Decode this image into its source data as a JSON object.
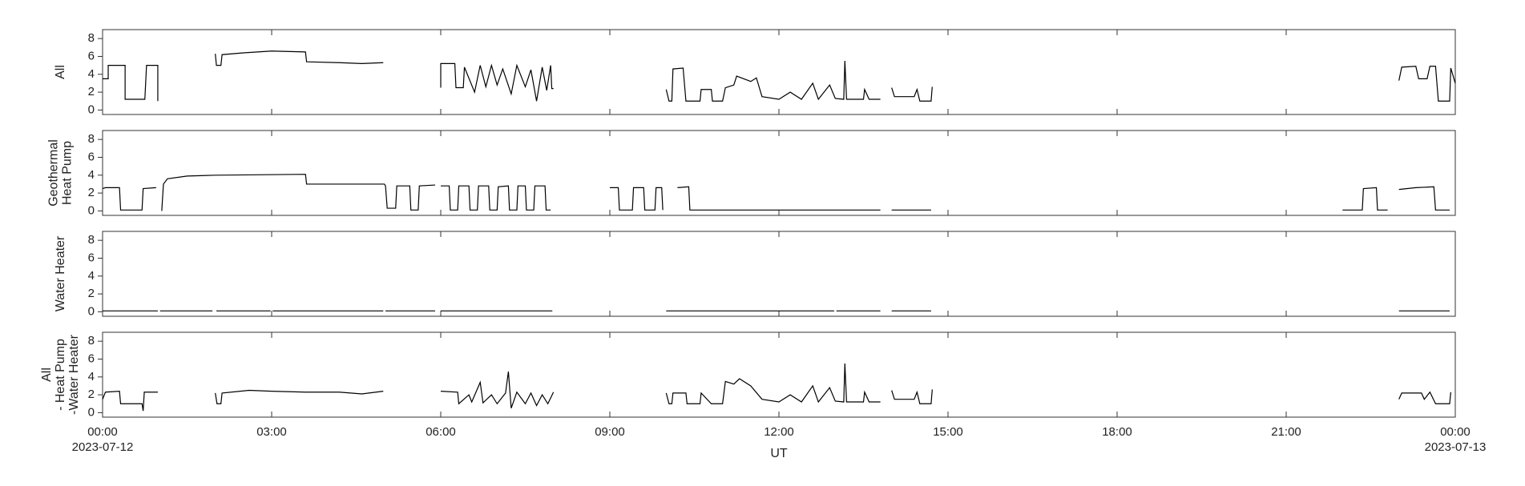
{
  "chart_data": [
    {
      "type": "line",
      "ylabel": [
        "All"
      ],
      "color": "#000000",
      "xlim": [
        0,
        24
      ],
      "xticks": [
        0,
        3,
        6,
        9,
        12,
        15,
        18,
        21,
        24
      ],
      "ylim": [
        -0.5,
        9
      ],
      "yticks": [
        0,
        2,
        4,
        6,
        8
      ],
      "x": [
        0,
        0.1,
        0.1,
        0.4,
        0.4,
        0.75,
        0.78,
        0.98,
        0.98,
        1.0,
        2.0,
        2.02,
        2.1,
        2.12,
        2.5,
        3.0,
        3.6,
        3.62,
        4.2,
        4.6,
        4.98,
        5.0,
        6.0,
        6.0,
        6.25,
        6.27,
        6.4,
        6.42,
        6.6,
        6.7,
        6.8,
        6.9,
        7.0,
        7.1,
        7.25,
        7.35,
        7.5,
        7.6,
        7.7,
        7.8,
        7.88,
        7.95,
        7.97,
        8.0,
        8.05,
        10.0,
        10.05,
        10.1,
        10.12,
        10.3,
        10.35,
        10.6,
        10.62,
        10.8,
        10.82,
        11.0,
        11.05,
        11.2,
        11.25,
        11.5,
        11.6,
        11.7,
        12.0,
        12.2,
        12.4,
        12.6,
        12.7,
        12.9,
        13.0,
        13.15,
        13.17,
        13.2,
        13.5,
        13.52,
        13.6,
        13.8,
        13.85,
        14.0,
        14.05,
        14.4,
        14.45,
        14.5,
        14.7,
        14.72,
        14.75,
        23.0,
        23.05,
        23.3,
        23.35,
        23.5,
        23.55,
        23.65,
        23.7,
        23.9,
        23.92,
        24.0
      ],
      "values": [
        3.5,
        3.5,
        5,
        5,
        1.2,
        1.2,
        5,
        5,
        1.0,
        null,
        6.3,
        5.0,
        5.0,
        6.2,
        6.4,
        6.6,
        6.5,
        5.4,
        5.3,
        5.2,
        5.3,
        null,
        2.5,
        5.2,
        5.2,
        2.5,
        2.5,
        4.8,
        2.0,
        5.0,
        2.6,
        5.0,
        2.8,
        4.6,
        1.8,
        5.0,
        2.6,
        4.5,
        1.0,
        4.8,
        2.2,
        5.0,
        2.4,
        2.4,
        null,
        2.3,
        1.0,
        1.0,
        4.6,
        4.7,
        1.0,
        1.0,
        2.3,
        2.3,
        1.0,
        1.0,
        2.5,
        2.8,
        3.8,
        3.2,
        3.6,
        1.5,
        1.2,
        2.0,
        1.2,
        3.0,
        1.2,
        2.8,
        1.3,
        1.2,
        5.5,
        1.2,
        1.2,
        2.3,
        1.2,
        1.2,
        null,
        2.5,
        1.5,
        1.5,
        2.3,
        1.0,
        1.0,
        2.6,
        null,
        3.3,
        4.8,
        4.9,
        3.5,
        3.5,
        4.9,
        4.9,
        1.0,
        1.0,
        4.7,
        3.0
      ]
    },
    {
      "type": "line",
      "ylabel": [
        "Geothermal",
        "Heat Pump"
      ],
      "color": "#000000",
      "xlim": [
        0,
        24
      ],
      "xticks": [
        0,
        3,
        6,
        9,
        12,
        15,
        18,
        21,
        24
      ],
      "ylim": [
        -0.5,
        9
      ],
      "yticks": [
        0,
        2,
        4,
        6,
        8
      ],
      "x": [
        0,
        0.05,
        0.3,
        0.32,
        0.7,
        0.72,
        0.95,
        0.97,
        1.05,
        1.08,
        1.15,
        1.5,
        2.0,
        3.6,
        3.62,
        5.0,
        5.02,
        5.05,
        5.2,
        5.22,
        5.45,
        5.47,
        5.6,
        5.62,
        5.9,
        5.92,
        6.0,
        6.15,
        6.17,
        6.3,
        6.32,
        6.5,
        6.52,
        6.65,
        6.67,
        6.85,
        6.87,
        7.0,
        7.02,
        7.2,
        7.22,
        7.35,
        7.37,
        7.5,
        7.52,
        7.65,
        7.67,
        7.85,
        7.87,
        7.95,
        7.97,
        9.0,
        9.15,
        9.17,
        9.4,
        9.42,
        9.6,
        9.62,
        9.8,
        9.82,
        9.92,
        9.94,
        9.96,
        10.2,
        10.4,
        10.42,
        13.8,
        13.85,
        14.0,
        14.7,
        14.75,
        22.0,
        22.35,
        22.37,
        22.6,
        22.62,
        22.8,
        22.85,
        23.0,
        23.3,
        23.62,
        23.65,
        23.9
      ],
      "values": [
        2.5,
        2.6,
        2.6,
        0.1,
        0.1,
        2.5,
        2.6,
        null,
        0,
        3.0,
        3.6,
        3.9,
        4.0,
        4.1,
        3.0,
        3.0,
        2.8,
        0.3,
        0.3,
        2.8,
        2.8,
        0.1,
        0.1,
        2.8,
        2.9,
        null,
        2.8,
        2.8,
        0.1,
        0.1,
        2.8,
        2.8,
        0.1,
        0.1,
        2.8,
        2.8,
        0.1,
        0.1,
        2.7,
        2.8,
        0.1,
        0.1,
        2.8,
        2.8,
        0.1,
        0.1,
        2.8,
        2.8,
        0.1,
        0.1,
        null,
        2.6,
        2.6,
        0.1,
        0.1,
        2.6,
        2.6,
        0.1,
        0.1,
        2.6,
        2.6,
        0.1,
        null,
        2.6,
        2.7,
        0.1,
        0.1,
        null,
        0.1,
        0.1,
        null,
        0.1,
        0.1,
        2.5,
        2.6,
        0.1,
        0.1,
        null,
        2.4,
        2.6,
        2.7,
        0.1,
        0.1
      ]
    },
    {
      "type": "line",
      "ylabel": [
        "Water Heater"
      ],
      "color": "#000000",
      "xlim": [
        0,
        24
      ],
      "xticks": [
        0,
        3,
        6,
        9,
        12,
        15,
        18,
        21,
        24
      ],
      "ylim": [
        -0.5,
        9
      ],
      "yticks": [
        0,
        2,
        4,
        6,
        8
      ],
      "x": [
        0,
        0.98,
        0.99,
        1.02,
        1.95,
        1.97,
        2.02,
        2.98,
        2.99,
        3.02,
        4.98,
        4.99,
        5.02,
        5.9,
        5.95,
        6.0,
        7.98,
        8.0,
        10.0,
        12.98,
        12.99,
        13.02,
        13.8,
        13.85,
        14.0,
        14.7,
        14.75,
        23.0,
        23.9
      ],
      "values": [
        0.1,
        0.1,
        null,
        0.1,
        0.1,
        null,
        0.1,
        0.1,
        null,
        0.1,
        0.1,
        null,
        0.1,
        0.1,
        null,
        0.1,
        0.1,
        null,
        0.1,
        0.1,
        null,
        0.1,
        0.1,
        null,
        0.1,
        0.1,
        null,
        0.1,
        0.1
      ]
    },
    {
      "type": "line",
      "ylabel": [
        "All",
        "- Heat Pump",
        "-Water Heater"
      ],
      "color": "#000000",
      "xlabel": "UT",
      "xlim": [
        0,
        24
      ],
      "xticks": [
        {
          "value": 0,
          "label": "00:00"
        },
        {
          "value": 3,
          "label": "03:00"
        },
        {
          "value": 6,
          "label": "06:00"
        },
        {
          "value": 9,
          "label": "09:00"
        },
        {
          "value": 12,
          "label": "12:00"
        },
        {
          "value": 15,
          "label": "15:00"
        },
        {
          "value": 18,
          "label": "18:00"
        },
        {
          "value": 21,
          "label": "21:00"
        },
        {
          "value": 24,
          "label": "00:00"
        }
      ],
      "date_labels": [
        {
          "value": 0,
          "label": "2023-07-12"
        },
        {
          "value": 24,
          "label": "2023-07-13"
        }
      ],
      "ylim": [
        -0.5,
        9
      ],
      "yticks": [
        0,
        2,
        4,
        6,
        8
      ],
      "x": [
        0,
        0.05,
        0.3,
        0.32,
        0.7,
        0.72,
        0.74,
        0.98,
        1.0,
        2.0,
        2.03,
        2.1,
        2.12,
        2.6,
        3.0,
        3.6,
        4.2,
        4.6,
        4.98,
        5.0,
        6.0,
        6.3,
        6.32,
        6.5,
        6.55,
        6.7,
        6.75,
        6.9,
        7.0,
        7.15,
        7.2,
        7.25,
        7.35,
        7.5,
        7.6,
        7.7,
        7.8,
        7.9,
        8.0,
        8.05,
        10.0,
        10.05,
        10.1,
        10.12,
        10.35,
        10.37,
        10.6,
        10.62,
        10.8,
        11.0,
        11.05,
        11.2,
        11.3,
        11.5,
        11.7,
        12.0,
        12.2,
        12.4,
        12.6,
        12.7,
        12.9,
        13.0,
        13.15,
        13.17,
        13.2,
        13.5,
        13.52,
        13.6,
        13.8,
        13.85,
        14.0,
        14.05,
        14.4,
        14.45,
        14.5,
        14.7,
        14.72,
        14.75,
        23.0,
        23.05,
        23.4,
        23.45,
        23.55,
        23.65,
        23.9,
        23.92
      ],
      "values": [
        1.5,
        2.3,
        2.4,
        1.0,
        1.0,
        0.2,
        2.3,
        2.3,
        null,
        2.2,
        1.0,
        1.0,
        2.2,
        2.5,
        2.4,
        2.3,
        2.3,
        2.1,
        2.4,
        null,
        2.4,
        2.3,
        1.0,
        2.0,
        1.2,
        3.4,
        1.1,
        2.0,
        1.0,
        2.2,
        4.6,
        0.5,
        2.3,
        1.0,
        2.2,
        0.8,
        2.0,
        1.0,
        2.3,
        null,
        2.2,
        1.0,
        1.0,
        2.2,
        2.2,
        1.0,
        1.0,
        2.2,
        1.0,
        1.0,
        3.5,
        3.2,
        3.8,
        3.0,
        1.5,
        1.2,
        2.0,
        1.2,
        3.0,
        1.2,
        2.8,
        1.3,
        1.2,
        5.5,
        1.2,
        1.2,
        2.3,
        1.2,
        1.2,
        null,
        2.5,
        1.5,
        1.5,
        2.3,
        1.0,
        1.0,
        2.6,
        null,
        1.5,
        2.2,
        2.2,
        1.5,
        2.3,
        1.0,
        1.0,
        2.3
      ]
    }
  ]
}
